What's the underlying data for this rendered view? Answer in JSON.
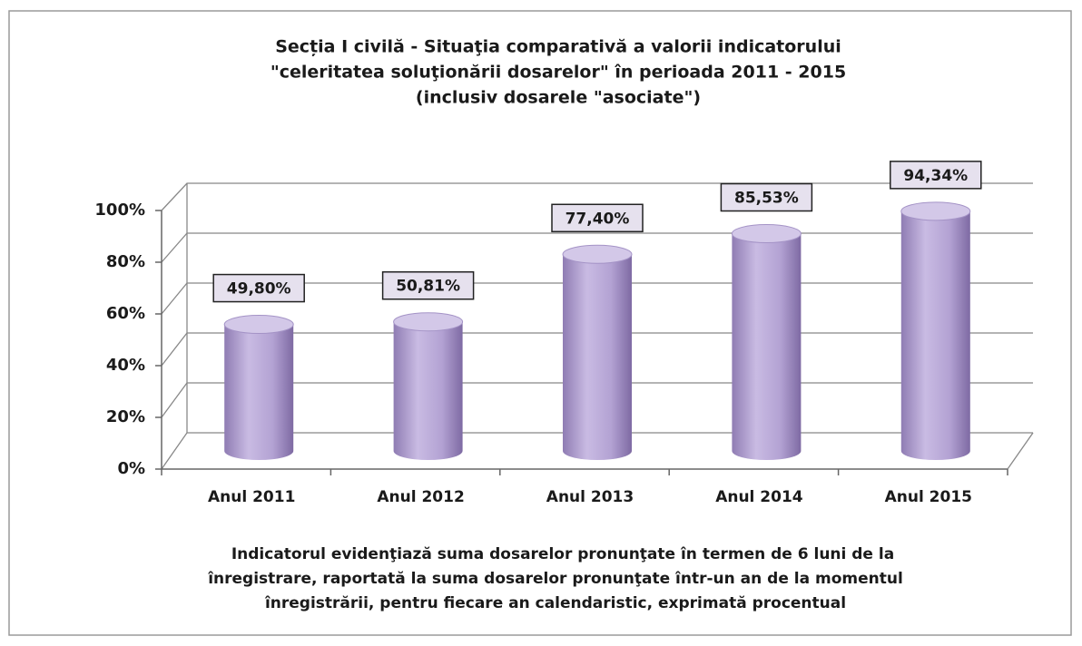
{
  "chart_data": {
    "type": "bar3d",
    "title": [
      "Secția I civilă - Situaţia comparativă a valorii indicatorului",
      "\"celeritatea soluţionării dosarelor\" în perioada 2011 - 2015",
      "(inclusiv dosarele \"asociate\")"
    ],
    "categories": [
      "Anul 2011",
      "Anul 2012",
      "Anul 2013",
      "Anul 2014",
      "Anul 2015"
    ],
    "values": [
      49.8,
      50.81,
      77.4,
      85.53,
      94.34
    ],
    "value_labels": [
      "49,80%",
      "50,81%",
      "77,40%",
      "85,53%",
      "94,34%"
    ],
    "color": "#b3a2d3",
    "ylim": [
      0,
      100
    ],
    "yticks": [
      {
        "value": 0,
        "label": "0%"
      },
      {
        "value": 20,
        "label": "20%"
      },
      {
        "value": 40,
        "label": "40%"
      },
      {
        "value": 60,
        "label": "60%"
      },
      {
        "value": 80,
        "label": "80%"
      },
      {
        "value": 100,
        "label": "100%"
      }
    ],
    "grid": true,
    "note": [
      "Indicatorul evidenţiază suma dosarelor pronunţate în termen de 6 luni de la",
      "înregistrare, raportată la suma dosarelor pronunţate într-un an de la momentul",
      "înregistrării, pentru fiecare an calendaristic, exprimată procentual"
    ]
  }
}
